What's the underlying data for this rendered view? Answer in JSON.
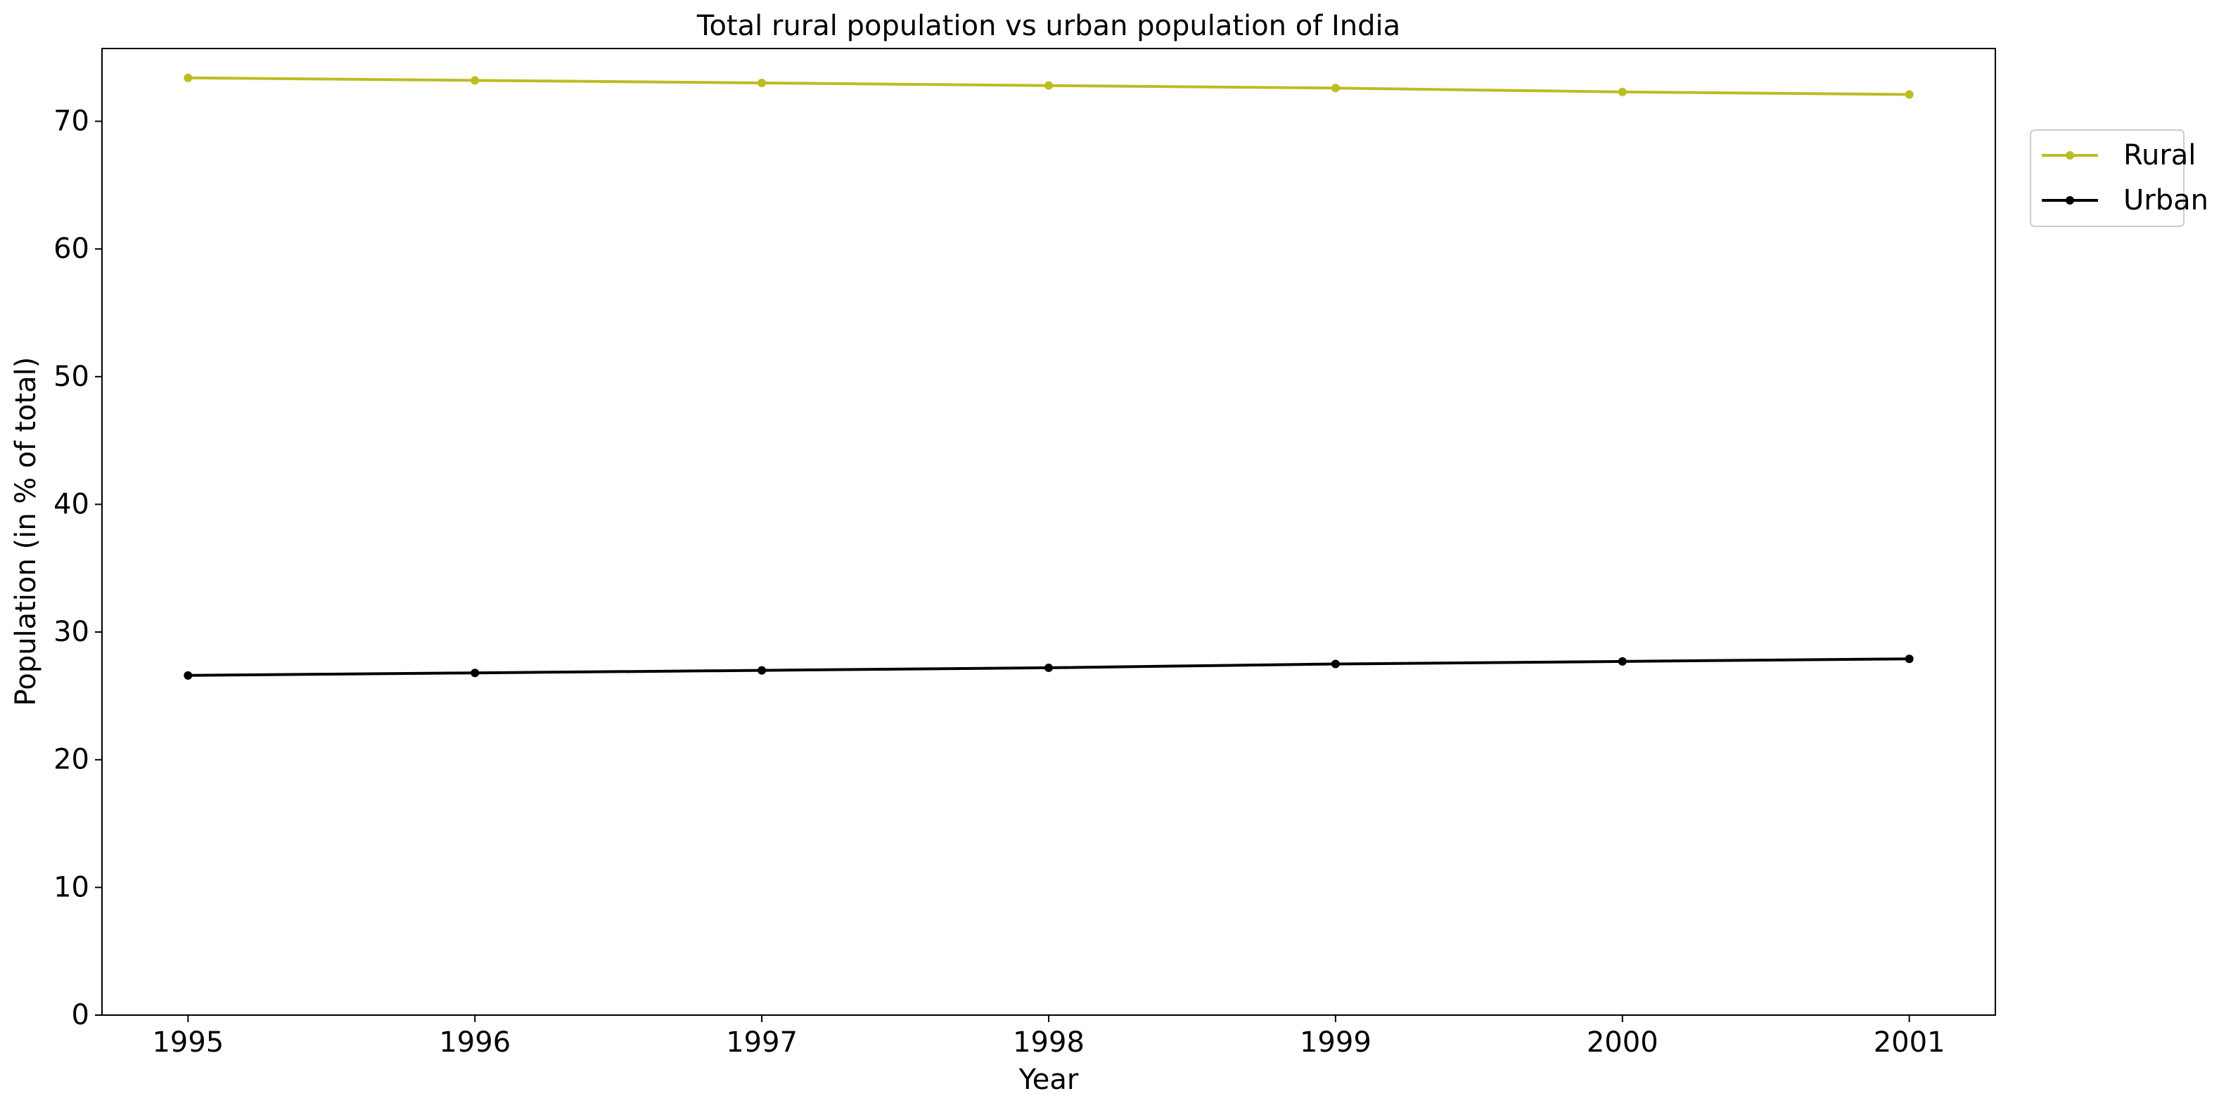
{
  "chart_data": {
    "type": "line",
    "title": "Total rural population vs urban population of India",
    "xlabel": "Year",
    "ylabel": "Population (in % of total)",
    "x": [
      1995,
      1996,
      1997,
      1998,
      1999,
      2000,
      2001
    ],
    "x_tick_labels": [
      "1995",
      "1996",
      "1997",
      "1998",
      "1999",
      "2000",
      "2001"
    ],
    "y_ticks": [
      0,
      10,
      20,
      30,
      40,
      50,
      60,
      70
    ],
    "y_tick_labels": [
      "0",
      "10",
      "20",
      "30",
      "40",
      "50",
      "60",
      "70"
    ],
    "xlim": [
      1994.7,
      2001.3
    ],
    "ylim": [
      0,
      75.7
    ],
    "grid": false,
    "legend_position": "upper right, outside plot area",
    "series": [
      {
        "name": "Rural",
        "color": "#bcbd22",
        "marker": "circle",
        "values": [
          73.4,
          73.2,
          73.0,
          72.8,
          72.6,
          72.3,
          72.1
        ]
      },
      {
        "name": "Urban",
        "color": "#000000",
        "marker": "circle",
        "values": [
          26.6,
          26.8,
          27.0,
          27.2,
          27.5,
          27.7,
          27.9
        ]
      }
    ]
  }
}
